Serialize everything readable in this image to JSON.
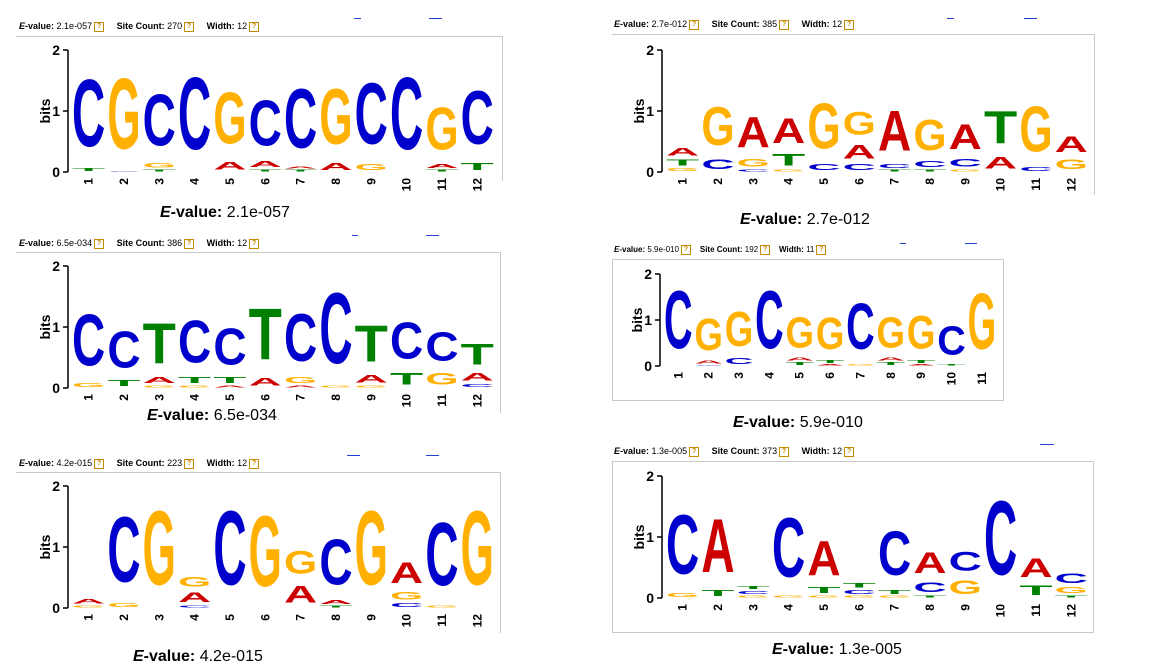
{
  "labels": {
    "evalue_e": "E",
    "evalue_rest": "-value:",
    "site_count": "Site Count:",
    "width": "Width:",
    "help_glyph": "?",
    "bits": "bits"
  },
  "colors": {
    "A": "#cc0000",
    "C": "#0000cc",
    "G": "#ffb000",
    "T": "#008000",
    "dash": "#2040d0"
  },
  "panels": [
    {
      "evalue": "2.1e-057",
      "site_count": "270",
      "width": "12",
      "caption_value": "2.1e-057",
      "columns": [
        [
          [
            "C",
            1.75
          ],
          [
            "T",
            0.08
          ]
        ],
        [
          [
            "G",
            1.85
          ],
          [
            "C",
            0.02
          ]
        ],
        [
          [
            "C",
            1.35
          ],
          [
            "T",
            0.05
          ],
          [
            "G",
            0.12
          ]
        ],
        [
          [
            "C",
            1.9
          ]
        ],
        [
          [
            "G",
            1.35
          ],
          [
            "A",
            0.2
          ]
        ],
        [
          [
            "C",
            1.2
          ],
          [
            "T",
            0.05
          ],
          [
            "A",
            0.15
          ]
        ],
        [
          [
            "C",
            1.55
          ],
          [
            "T",
            0.05
          ],
          [
            "A",
            0.05
          ]
        ],
        [
          [
            "G",
            1.45
          ],
          [
            "A",
            0.18
          ]
        ],
        [
          [
            "C",
            1.6
          ],
          [
            "G",
            0.15
          ]
        ],
        [
          [
            "C",
            1.9
          ]
        ],
        [
          [
            "G",
            1.1
          ],
          [
            "A",
            0.1
          ],
          [
            "T",
            0.05
          ]
        ],
        [
          [
            "C",
            1.4
          ],
          [
            "T",
            0.18
          ]
        ]
      ]
    },
    {
      "evalue": "2.7e-012",
      "site_count": "385",
      "width": "12",
      "caption_value": "2.7e-012",
      "columns": [
        [
          [
            "T",
            0.15
          ],
          [
            "A",
            0.2
          ],
          [
            "G",
            0.08
          ]
        ],
        [
          [
            "G",
            1.0
          ],
          [
            "C",
            0.25
          ]
        ],
        [
          [
            "A",
            0.8
          ],
          [
            "G",
            0.2
          ],
          [
            "C",
            0.05
          ]
        ],
        [
          [
            "A",
            0.65
          ],
          [
            "T",
            0.3
          ],
          [
            "G",
            0.05
          ]
        ],
        [
          [
            "G",
            1.2
          ],
          [
            "C",
            0.15
          ]
        ],
        [
          [
            "G",
            0.6
          ],
          [
            "A",
            0.35
          ],
          [
            "C",
            0.15
          ]
        ],
        [
          [
            "A",
            1.05
          ],
          [
            "C",
            0.1
          ],
          [
            "T",
            0.05
          ]
        ],
        [
          [
            "G",
            0.8
          ],
          [
            "C",
            0.15
          ],
          [
            "T",
            0.05
          ]
        ],
        [
          [
            "A",
            0.65
          ],
          [
            "C",
            0.2
          ],
          [
            "G",
            0.05
          ]
        ],
        [
          [
            "T",
            0.85
          ],
          [
            "A",
            0.3
          ]
        ],
        [
          [
            "G",
            1.2
          ],
          [
            "C",
            0.1
          ]
        ],
        [
          [
            "A",
            0.4
          ],
          [
            "G",
            0.25
          ]
        ]
      ]
    },
    {
      "evalue": "6.5e-034",
      "site_count": "386",
      "width": "12",
      "caption_value": "6.5e-034",
      "columns": [
        [
          [
            "C",
            1.35
          ],
          [
            "G",
            0.1
          ]
        ],
        [
          [
            "C",
            0.95
          ],
          [
            "T",
            0.15
          ]
        ],
        [
          [
            "T",
            1.05
          ],
          [
            "A",
            0.15
          ],
          [
            "G",
            0.05
          ]
        ],
        [
          [
            "C",
            1.1
          ],
          [
            "T",
            0.15
          ],
          [
            "G",
            0.05
          ]
        ],
        [
          [
            "C",
            0.95
          ],
          [
            "T",
            0.15
          ],
          [
            "A",
            0.05
          ]
        ],
        [
          [
            "T",
            1.35
          ],
          [
            "A",
            0.2
          ]
        ],
        [
          [
            "C",
            1.25
          ],
          [
            "G",
            0.15
          ],
          [
            "A",
            0.05
          ]
        ],
        [
          [
            "C",
            1.85
          ],
          [
            "G",
            0.05
          ]
        ],
        [
          [
            "T",
            0.95
          ],
          [
            "A",
            0.2
          ],
          [
            "G",
            0.05
          ]
        ],
        [
          [
            "C",
            0.95
          ],
          [
            "T",
            0.3
          ]
        ],
        [
          [
            "C",
            0.75
          ],
          [
            "G",
            0.3
          ]
        ],
        [
          [
            "T",
            0.55
          ],
          [
            "A",
            0.2
          ],
          [
            "C",
            0.08
          ]
        ]
      ]
    },
    {
      "evalue": "5.9e-010",
      "site_count": "192",
      "width": "11",
      "caption_value": "5.9e-010",
      "columns": [
        [
          [
            "C",
            2.0
          ]
        ],
        [
          [
            "G",
            1.1
          ],
          [
            "A",
            0.1
          ],
          [
            "C",
            0.03
          ]
        ],
        [
          [
            "G",
            1.2
          ],
          [
            "C",
            0.2
          ]
        ],
        [
          [
            "C",
            2.0
          ]
        ],
        [
          [
            "G",
            1.05
          ],
          [
            "T",
            0.1
          ],
          [
            "A",
            0.1
          ]
        ],
        [
          [
            "G",
            1.1
          ],
          [
            "T",
            0.1
          ],
          [
            "A",
            0.05
          ]
        ],
        [
          [
            "C",
            1.6
          ],
          [
            "G",
            0.05
          ]
        ],
        [
          [
            "G",
            1.05
          ],
          [
            "T",
            0.1
          ],
          [
            "A",
            0.1
          ]
        ],
        [
          [
            "G",
            1.15
          ],
          [
            "T",
            0.1
          ],
          [
            "A",
            0.05
          ]
        ],
        [
          [
            "C",
            1.0
          ],
          [
            "T",
            0.05
          ]
        ],
        [
          [
            "G",
            1.95
          ]
        ]
      ]
    },
    {
      "evalue": "4.2e-015",
      "site_count": "223",
      "width": "12",
      "caption_value": "4.2e-015",
      "columns": [
        [
          [
            "A",
            0.12
          ],
          [
            "G",
            0.05
          ]
        ],
        [
          [
            "C",
            1.7
          ],
          [
            "G",
            0.1
          ]
        ],
        [
          [
            "G",
            1.95
          ]
        ],
        [
          [
            "A",
            0.25
          ],
          [
            "G",
            0.25
          ],
          [
            "C",
            0.05
          ]
        ],
        [
          [
            "C",
            1.95
          ]
        ],
        [
          [
            "G",
            1.85
          ]
        ],
        [
          [
            "G",
            0.6
          ],
          [
            "A",
            0.45
          ]
        ],
        [
          [
            "C",
            1.2
          ],
          [
            "A",
            0.1
          ],
          [
            "T",
            0.05
          ]
        ],
        [
          [
            "G",
            1.95
          ]
        ],
        [
          [
            "A",
            0.55
          ],
          [
            "G",
            0.2
          ],
          [
            "C",
            0.1
          ]
        ],
        [
          [
            "C",
            1.65
          ],
          [
            "G",
            0.05
          ]
        ],
        [
          [
            "G",
            1.95
          ]
        ]
      ]
    },
    {
      "evalue": "1.3e-005",
      "site_count": "373",
      "width": "12",
      "caption_value": "1.3e-005",
      "columns": [
        [
          [
            "C",
            1.55
          ],
          [
            "G",
            0.1
          ]
        ],
        [
          [
            "A",
            1.4
          ],
          [
            "T",
            0.15
          ]
        ],
        [
          [
            "C",
            0.08
          ],
          [
            "T",
            0.08
          ],
          [
            "G",
            0.05
          ]
        ],
        [
          [
            "C",
            1.55
          ],
          [
            "G",
            0.05
          ]
        ],
        [
          [
            "A",
            0.9
          ],
          [
            "T",
            0.15
          ],
          [
            "G",
            0.05
          ]
        ],
        [
          [
            "T",
            0.12
          ],
          [
            "C",
            0.1
          ],
          [
            "G",
            0.05
          ]
        ],
        [
          [
            "C",
            1.15
          ],
          [
            "T",
            0.1
          ],
          [
            "G",
            0.05
          ]
        ],
        [
          [
            "A",
            0.55
          ],
          [
            "C",
            0.25
          ],
          [
            "T",
            0.05
          ]
        ],
        [
          [
            "C",
            0.5
          ],
          [
            "G",
            0.35
          ]
        ],
        [
          [
            "C",
            1.95
          ]
        ],
        [
          [
            "A",
            0.5
          ],
          [
            "T",
            0.25
          ]
        ],
        [
          [
            "C",
            0.25
          ],
          [
            "G",
            0.15
          ],
          [
            "T",
            0.05
          ]
        ]
      ]
    }
  ]
}
